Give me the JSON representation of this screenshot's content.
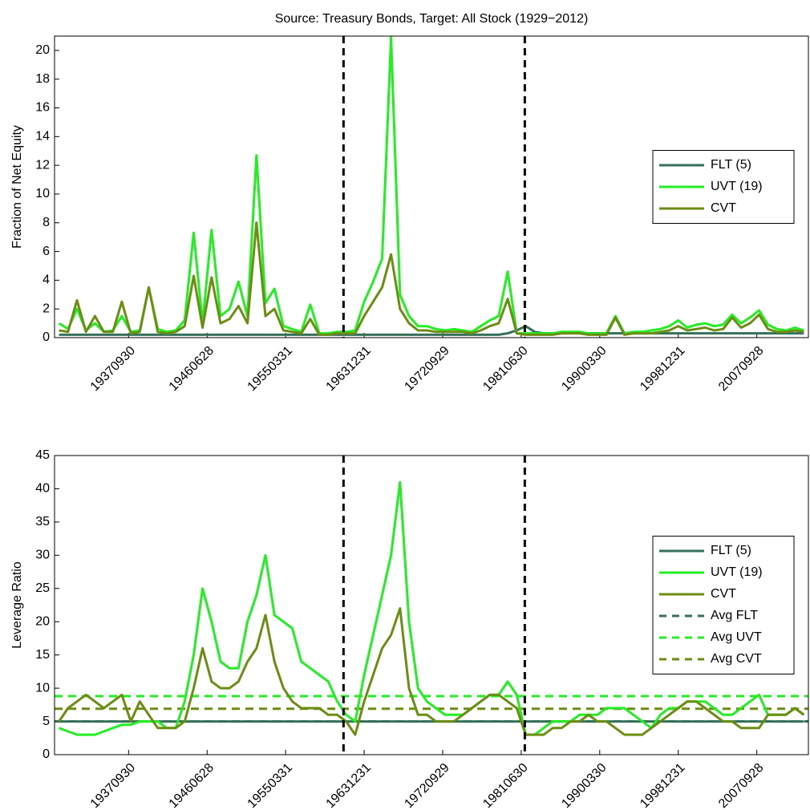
{
  "chart_data": [
    {
      "type": "line",
      "title": "Source: Treasury Bonds, Target: All Stock (1929−2012)",
      "ylabel": "Fraction of Net Equity",
      "legend": "east",
      "xlim": [
        1929.5,
        2013.5
      ],
      "ylim": [
        0,
        21
      ],
      "yticks": [
        0,
        2,
        4,
        6,
        8,
        10,
        12,
        14,
        16,
        18,
        20
      ],
      "xticks": [
        {
          "value": 1937.75,
          "label": "19370930"
        },
        {
          "value": 1946.5,
          "label": "19460628"
        },
        {
          "value": 1955.25,
          "label": "19550331"
        },
        {
          "value": 1964.0,
          "label": "19631231"
        },
        {
          "value": 1972.75,
          "label": "19720929"
        },
        {
          "value": 1981.5,
          "label": "19810630"
        },
        {
          "value": 1990.25,
          "label": "19900330"
        },
        {
          "value": 1999.0,
          "label": "19981231"
        },
        {
          "value": 2007.75,
          "label": "20070928"
        }
      ],
      "vlines": [
        1961.7,
        1981.9
      ],
      "x": [
        1930,
        1931,
        1932,
        1933,
        1934,
        1935,
        1936,
        1937,
        1938,
        1939,
        1940,
        1941,
        1942,
        1943,
        1944,
        1945,
        1946,
        1947,
        1948,
        1949,
        1950,
        1951,
        1952,
        1953,
        1954,
        1955,
        1956,
        1957,
        1958,
        1959,
        1960,
        1961,
        1962,
        1963,
        1964,
        1965,
        1966,
        1967,
        1968,
        1969,
        1970,
        1971,
        1972,
        1973,
        1974,
        1975,
        1976,
        1977,
        1978,
        1979,
        1980,
        1981,
        1982,
        1983,
        1984,
        1985,
        1986,
        1987,
        1988,
        1989,
        1990,
        1991,
        1992,
        1993,
        1994,
        1995,
        1996,
        1997,
        1998,
        1999,
        2000,
        2001,
        2002,
        2003,
        2004,
        2005,
        2006,
        2007,
        2008,
        2009,
        2010,
        2011,
        2012,
        2013
      ],
      "series": [
        {
          "name": "FLT (5)",
          "color": "#36705a",
          "values": [
            0.2,
            0.2,
            0.2,
            0.2,
            0.2,
            0.2,
            0.2,
            0.2,
            0.2,
            0.2,
            0.2,
            0.2,
            0.2,
            0.2,
            0.2,
            0.2,
            0.2,
            0.2,
            0.2,
            0.2,
            0.2,
            0.2,
            0.2,
            0.2,
            0.2,
            0.2,
            0.2,
            0.2,
            0.2,
            0.2,
            0.2,
            0.2,
            0.2,
            0.2,
            0.2,
            0.2,
            0.2,
            0.2,
            0.2,
            0.2,
            0.2,
            0.2,
            0.2,
            0.2,
            0.2,
            0.2,
            0.2,
            0.2,
            0.2,
            0.2,
            0.3,
            0.5,
            0.8,
            0.4,
            0.3,
            0.3,
            0.3,
            0.3,
            0.3,
            0.3,
            0.3,
            0.3,
            0.3,
            0.3,
            0.3,
            0.3,
            0.3,
            0.3,
            0.3,
            0.3,
            0.3,
            0.3,
            0.3,
            0.3,
            0.3,
            0.3,
            0.3,
            0.3,
            0.3,
            0.3,
            0.3,
            0.3,
            0.3,
            0.3
          ]
        },
        {
          "name": "UVT (19)",
          "color": "#22ee22",
          "values": [
            1.0,
            0.6,
            2.0,
            0.5,
            1.0,
            0.4,
            0.5,
            1.5,
            0.4,
            0.5,
            3.5,
            0.6,
            0.4,
            0.5,
            1.2,
            7.3,
            1.0,
            7.5,
            1.5,
            2.0,
            3.9,
            1.5,
            12.7,
            2.4,
            3.4,
            0.8,
            0.6,
            0.4,
            2.3,
            0.3,
            0.3,
            0.4,
            0.4,
            0.5,
            2.5,
            3.9,
            5.5,
            20.9,
            3.0,
            1.5,
            0.8,
            0.8,
            0.6,
            0.5,
            0.6,
            0.5,
            0.4,
            0.8,
            1.2,
            1.5,
            4.6,
            0.3,
            0.3,
            0.3,
            0.3,
            0.3,
            0.4,
            0.4,
            0.4,
            0.3,
            0.3,
            0.3,
            1.5,
            0.3,
            0.4,
            0.4,
            0.5,
            0.6,
            0.8,
            1.2,
            0.7,
            0.9,
            1.0,
            0.8,
            0.9,
            1.6,
            1.0,
            1.4,
            1.9,
            0.9,
            0.6,
            0.5,
            0.7,
            0.5
          ]
        },
        {
          "name": "CVT",
          "color": "#6b8e12",
          "values": [
            0.5,
            0.4,
            2.6,
            0.4,
            1.5,
            0.4,
            0.4,
            2.5,
            0.3,
            0.4,
            3.5,
            0.4,
            0.3,
            0.4,
            0.8,
            4.3,
            0.7,
            4.2,
            1.0,
            1.3,
            2.2,
            1.0,
            8.0,
            1.5,
            2.0,
            0.5,
            0.4,
            0.3,
            1.3,
            0.2,
            0.2,
            0.3,
            0.3,
            0.3,
            1.5,
            2.5,
            3.5,
            5.8,
            2.0,
            1.0,
            0.5,
            0.5,
            0.4,
            0.4,
            0.4,
            0.4,
            0.3,
            0.5,
            0.8,
            1.0,
            2.7,
            0.3,
            0.2,
            0.2,
            0.2,
            0.2,
            0.3,
            0.3,
            0.3,
            0.2,
            0.2,
            0.2,
            1.4,
            0.2,
            0.3,
            0.3,
            0.3,
            0.4,
            0.5,
            0.8,
            0.5,
            0.6,
            0.7,
            0.5,
            0.6,
            1.4,
            0.7,
            1.0,
            1.6,
            0.6,
            0.4,
            0.4,
            0.5,
            0.4
          ]
        }
      ]
    },
    {
      "type": "line",
      "ylabel": "Leverage Ratio",
      "legend": "east",
      "xlim": [
        1929.5,
        2013.5
      ],
      "ylim": [
        0,
        45
      ],
      "yticks": [
        0,
        5,
        10,
        15,
        20,
        25,
        30,
        35,
        40,
        45
      ],
      "xticks": [
        {
          "value": 1937.75,
          "label": "19370930"
        },
        {
          "value": 1946.5,
          "label": "19460628"
        },
        {
          "value": 1955.25,
          "label": "19550331"
        },
        {
          "value": 1964.0,
          "label": "19631231"
        },
        {
          "value": 1972.75,
          "label": "19720929"
        },
        {
          "value": 1981.5,
          "label": "19810630"
        },
        {
          "value": 1990.25,
          "label": "19900330"
        },
        {
          "value": 1999.0,
          "label": "19981231"
        },
        {
          "value": 2007.75,
          "label": "20070928"
        }
      ],
      "vlines": [
        1961.7,
        1981.9
      ],
      "x": [
        1930,
        1931,
        1932,
        1933,
        1934,
        1935,
        1936,
        1937,
        1938,
        1939,
        1940,
        1941,
        1942,
        1943,
        1944,
        1945,
        1946,
        1947,
        1948,
        1949,
        1950,
        1951,
        1952,
        1953,
        1954,
        1955,
        1956,
        1957,
        1958,
        1959,
        1960,
        1961,
        1962,
        1963,
        1964,
        1965,
        1966,
        1967,
        1968,
        1969,
        1970,
        1971,
        1972,
        1973,
        1974,
        1975,
        1976,
        1977,
        1978,
        1979,
        1980,
        1981,
        1982,
        1983,
        1984,
        1985,
        1986,
        1987,
        1988,
        1989,
        1990,
        1991,
        1992,
        1993,
        1994,
        1995,
        1996,
        1997,
        1998,
        1999,
        2000,
        2001,
        2002,
        2003,
        2004,
        2005,
        2006,
        2007,
        2008,
        2009,
        2010,
        2011,
        2012,
        2013
      ],
      "series": [
        {
          "name": "FLT (5)",
          "color": "#36705a",
          "values": [
            5,
            5,
            5,
            5,
            5,
            5,
            5,
            5,
            5,
            5,
            5,
            5,
            5,
            5,
            5,
            5,
            5,
            5,
            5,
            5,
            5,
            5,
            5,
            5,
            5,
            5,
            5,
            5,
            5,
            5,
            5,
            5,
            5,
            5,
            5,
            5,
            5,
            5,
            5,
            5,
            5,
            5,
            5,
            5,
            5,
            5,
            5,
            5,
            5,
            5,
            5,
            5,
            5,
            5,
            5,
            5,
            5,
            5,
            5,
            5,
            5,
            5,
            5,
            5,
            5,
            5,
            5,
            5,
            5,
            5,
            5,
            5,
            5,
            5,
            5,
            5,
            5,
            5,
            5,
            5,
            5,
            5,
            5,
            5
          ]
        },
        {
          "name": "UVT (19)",
          "color": "#22ee22",
          "values": [
            4,
            3.5,
            3,
            3,
            3,
            3.5,
            4,
            4.5,
            4.5,
            5,
            5,
            5,
            4,
            4,
            8,
            15,
            25,
            20,
            14,
            13,
            13,
            20,
            24,
            30,
            21,
            20,
            19,
            14,
            13,
            12,
            11,
            8,
            6,
            5,
            12,
            18,
            24,
            30,
            41,
            20,
            10,
            8,
            7,
            6,
            6,
            6,
            7,
            8,
            9,
            9,
            11,
            9,
            3,
            3,
            4,
            5,
            5,
            5,
            6,
            6,
            6,
            7,
            7,
            7,
            6,
            5,
            4,
            6,
            7,
            7,
            8,
            8,
            8,
            7,
            6,
            6,
            7,
            8,
            9,
            6,
            6,
            6,
            7,
            6
          ]
        },
        {
          "name": "CVT",
          "color": "#6b8e12",
          "values": [
            5,
            7,
            8,
            9,
            8,
            7,
            8,
            9,
            5,
            8,
            6,
            4,
            4,
            4,
            5,
            10,
            16,
            11,
            10,
            10,
            11,
            14,
            16,
            21,
            14,
            10,
            8,
            7,
            7,
            7,
            6,
            6,
            5,
            3,
            8,
            12,
            16,
            18,
            22,
            10,
            6,
            6,
            5,
            5,
            5,
            6,
            7,
            8,
            9,
            9,
            8,
            7,
            3,
            3,
            3,
            4,
            4,
            5,
            5,
            6,
            5,
            5,
            4,
            3,
            3,
            3,
            4,
            5,
            6,
            7,
            8,
            8,
            7,
            6,
            5,
            5,
            4,
            4,
            4,
            6,
            6,
            6,
            7,
            6
          ]
        }
      ],
      "reference_lines": [
        {
          "name": "Avg FLT",
          "color": "#36705a",
          "value": 5
        },
        {
          "name": "Avg UVT",
          "color": "#22ee22",
          "value": 8.8
        },
        {
          "name": "Avg CVT",
          "color": "#6b8e12",
          "value": 6.9
        }
      ]
    }
  ]
}
